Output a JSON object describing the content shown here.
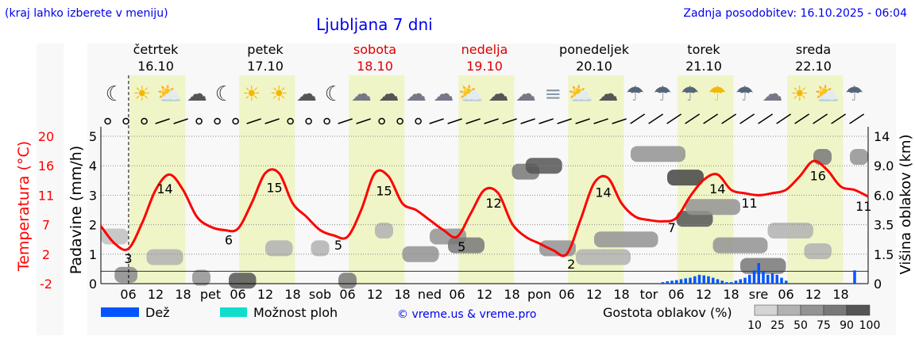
{
  "header": {
    "hint": "(kraj lahko izberete v meniju)",
    "title": "Ljubljana 7 dni",
    "updated": "Zadnja posodobitev: 16.10.2025 - 06:04"
  },
  "colors": {
    "temperature": "#ff0000",
    "rain": "#0055ff",
    "showers": "#11ddcc",
    "daylight": "#f0f5c8",
    "weekend": "#dd0000",
    "link": "#0000ee"
  },
  "days": [
    {
      "name": "četrtek",
      "date": "16.10",
      "weekend": false,
      "short": "čet"
    },
    {
      "name": "petek",
      "date": "17.10",
      "weekend": false,
      "short": "pet"
    },
    {
      "name": "sobota",
      "date": "18.10",
      "weekend": true,
      "short": "sob"
    },
    {
      "name": "nedelja",
      "date": "19.10",
      "weekend": true,
      "short": "ned"
    },
    {
      "name": "ponedeljek",
      "date": "20.10",
      "weekend": false,
      "short": "pon"
    },
    {
      "name": "torek",
      "date": "21.10",
      "weekend": false,
      "short": "tor"
    },
    {
      "name": "sreda",
      "date": "22.10",
      "weekend": false,
      "short": "sre"
    }
  ],
  "icons": [
    "moon",
    "fog-sun",
    "sun-cloud",
    "cloud-moon",
    "moon-fog",
    "fog-sun",
    "fog-sun",
    "cloud-moon",
    "moon-fog",
    "fog-cloud",
    "cloud-moon",
    "cloud",
    "cloud",
    "sun-cloud",
    "cloud-moon",
    "cloud",
    "fog",
    "sun-cloud",
    "cloud-moon",
    "rain-moon",
    "rain-cloud",
    "rain-cloud",
    "sun-rain",
    "rain-cloud",
    "cloud",
    "fog-sun",
    "sun-cloud",
    "rain-cloud"
  ],
  "chart_data": {
    "type": "line",
    "now_hour": 6.07,
    "x_ticks": [
      "06",
      "12",
      "18"
    ],
    "left_axis": {
      "label": "Padavine (mm/h)",
      "ticks": [
        0,
        1,
        2,
        3,
        4,
        5
      ],
      "ylim": [
        0,
        5.5
      ]
    },
    "temp_axis": {
      "label": "Temperatura (°C)",
      "ticks": [
        -2,
        2,
        7,
        11,
        16,
        20
      ]
    },
    "right_axis": {
      "label": "Višina oblakov (km)",
      "ticks": [
        "0",
        "1.5",
        "3.5",
        "6.0",
        "9.0",
        "14"
      ]
    },
    "temperature": {
      "hours": [
        0,
        3,
        6,
        9,
        12,
        15,
        18,
        21,
        24,
        27,
        30,
        33,
        36,
        39,
        42,
        45,
        48,
        51,
        54,
        57,
        60,
        63,
        66,
        69,
        72,
        75,
        78,
        81,
        84,
        87,
        90,
        93,
        96,
        99,
        102,
        105,
        108,
        111,
        114,
        117,
        120,
        123,
        126,
        129,
        132,
        135,
        138,
        141,
        144,
        147,
        150,
        153,
        156,
        159,
        162,
        165,
        168
      ],
      "values": [
        6.6,
        4,
        3.2,
        7,
        12,
        14.3,
        12,
        8,
        6.5,
        6,
        6.2,
        10,
        14.5,
        14.5,
        10,
        8,
        6,
        5.2,
        5,
        9,
        14.5,
        14,
        10,
        9,
        7.5,
        6,
        5,
        8.5,
        12,
        11.5,
        7,
        5,
        4,
        3,
        2.4,
        7.5,
        13,
        13.8,
        10,
        8,
        7.5,
        7.3,
        7.8,
        11,
        13.5,
        14.3,
        12,
        11.5,
        11.2,
        11.5,
        12,
        14,
        16.3,
        15,
        12.5,
        12,
        11
      ]
    },
    "temp_labels": [
      {
        "h": 6,
        "t": "3"
      },
      {
        "h": 14,
        "t": "14"
      },
      {
        "h": 28,
        "t": "6"
      },
      {
        "h": 38,
        "t": "15"
      },
      {
        "h": 52,
        "t": "5"
      },
      {
        "h": 62,
        "t": "15"
      },
      {
        "h": 79,
        "t": "5"
      },
      {
        "h": 86,
        "t": "12"
      },
      {
        "h": 103,
        "t": "2"
      },
      {
        "h": 110,
        "t": "14"
      },
      {
        "h": 125,
        "t": "7"
      },
      {
        "h": 135,
        "t": "14"
      },
      {
        "h": 142,
        "t": "11"
      },
      {
        "h": 157,
        "t": "16"
      },
      {
        "h": 167,
        "t": "11"
      }
    ],
    "rain": {
      "hours": [
        123,
        124,
        125,
        126,
        127,
        128,
        129,
        130,
        131,
        132,
        133,
        134,
        135,
        136,
        137,
        138,
        139,
        140,
        141,
        142,
        143,
        144,
        145,
        146,
        147,
        148,
        149,
        150,
        165
      ],
      "values": [
        0.05,
        0.08,
        0.1,
        0.12,
        0.15,
        0.18,
        0.2,
        0.25,
        0.3,
        0.28,
        0.25,
        0.2,
        0.15,
        0.1,
        0.05,
        0.05,
        0.1,
        0.15,
        0.2,
        0.3,
        0.45,
        0.7,
        0.4,
        0.3,
        0.35,
        0.3,
        0.2,
        0.1,
        0.45
      ]
    },
    "clouds": [
      {
        "h0": 0,
        "h1": 6,
        "lvl": 1.6,
        "d": 40
      },
      {
        "h0": 3,
        "h1": 8,
        "lvl": 0.3,
        "d": 60
      },
      {
        "h0": 10,
        "h1": 18,
        "lvl": 0.9,
        "d": 25
      },
      {
        "h0": 20,
        "h1": 24,
        "lvl": 0.2,
        "d": 50
      },
      {
        "h0": 28,
        "h1": 34,
        "lvl": 0.1,
        "d": 90
      },
      {
        "h0": 36,
        "h1": 42,
        "lvl": 1.2,
        "d": 25
      },
      {
        "h0": 46,
        "h1": 50,
        "lvl": 1.2,
        "d": 25
      },
      {
        "h0": 52,
        "h1": 56,
        "lvl": 0.1,
        "d": 75
      },
      {
        "h0": 60,
        "h1": 64,
        "lvl": 1.8,
        "d": 25
      },
      {
        "h0": 66,
        "h1": 74,
        "lvl": 1.0,
        "d": 50
      },
      {
        "h0": 72,
        "h1": 80,
        "lvl": 1.6,
        "d": 50
      },
      {
        "h0": 76,
        "h1": 84,
        "lvl": 1.3,
        "d": 75
      },
      {
        "h0": 90,
        "h1": 96,
        "lvl": 3.8,
        "d": 75
      },
      {
        "h0": 93,
        "h1": 101,
        "lvl": 4.0,
        "d": 90
      },
      {
        "h0": 96,
        "h1": 104,
        "lvl": 1.2,
        "d": 50
      },
      {
        "h0": 104,
        "h1": 116,
        "lvl": 0.9,
        "d": 25
      },
      {
        "h0": 108,
        "h1": 122,
        "lvl": 1.5,
        "d": 50
      },
      {
        "h0": 116,
        "h1": 128,
        "lvl": 4.4,
        "d": 50
      },
      {
        "h0": 124,
        "h1": 132,
        "lvl": 3.6,
        "d": 100
      },
      {
        "h0": 126,
        "h1": 134,
        "lvl": 2.2,
        "d": 90
      },
      {
        "h0": 128,
        "h1": 140,
        "lvl": 2.6,
        "d": 50
      },
      {
        "h0": 134,
        "h1": 146,
        "lvl": 1.3,
        "d": 50
      },
      {
        "h0": 140,
        "h1": 150,
        "lvl": 0.6,
        "d": 75
      },
      {
        "h0": 146,
        "h1": 156,
        "lvl": 1.8,
        "d": 25
      },
      {
        "h0": 154,
        "h1": 160,
        "lvl": 1.1,
        "d": 25
      },
      {
        "h0": 156,
        "h1": 160,
        "lvl": 4.3,
        "d": 75
      },
      {
        "h0": 164,
        "h1": 168,
        "lvl": 4.3,
        "d": 50
      }
    ]
  },
  "legend": {
    "rain": "Dež",
    "showers": "Možnost ploh",
    "credit": "© vreme.us & vreme.pro",
    "cloud_title": "Gostota oblakov (%)",
    "cloud_ticks": [
      "10",
      "25",
      "50",
      "75",
      "90",
      "100"
    ],
    "cloud_colors": [
      "#d4d4d4",
      "#b2b2b2",
      "#939393",
      "#787878",
      "#555555"
    ]
  }
}
